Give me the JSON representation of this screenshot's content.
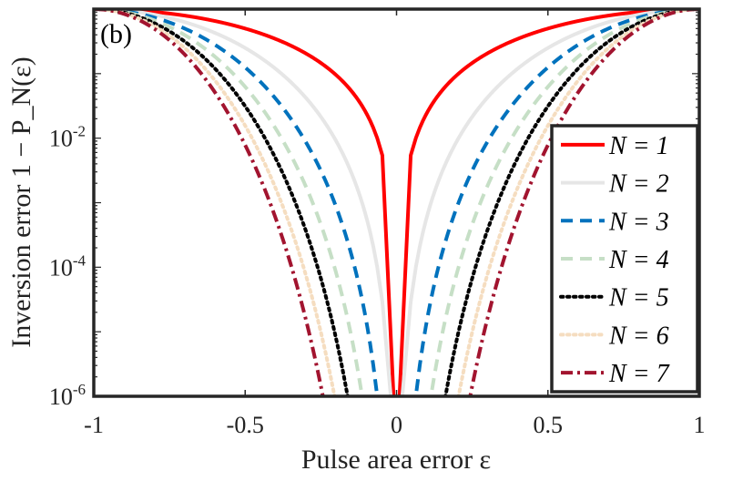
{
  "chart_data": {
    "type": "line",
    "panel_label": "(b)",
    "xlabel": "Pulse area error ε",
    "ylabel": "Inversion error 1 − P_N(ε)",
    "xlim": [
      -1,
      1
    ],
    "ylim": [
      1e-06,
      1
    ],
    "y_scale": "log",
    "x_ticks": [
      {
        "value": -1,
        "label": "-1"
      },
      {
        "value": -0.5,
        "label": "-0.5"
      },
      {
        "value": 0,
        "label": "0"
      },
      {
        "value": 0.5,
        "label": "0.5"
      },
      {
        "value": 1,
        "label": "1"
      }
    ],
    "y_ticks": [
      {
        "value": 1e-06,
        "base": "10",
        "exp": "-6"
      },
      {
        "value": 0.0001,
        "base": "10",
        "exp": "-4"
      },
      {
        "value": 0.01,
        "base": "10",
        "exp": "-2"
      }
    ],
    "grid": false,
    "legend_position": "right",
    "series": [
      {
        "name": "N = 1",
        "color": "#ff0000",
        "dash": "solid",
        "N": 1
      },
      {
        "name": "N = 2",
        "color": "#e6e6e6",
        "dash": "solid",
        "N": 2
      },
      {
        "name": "N = 3",
        "color": "#0072bd",
        "dash": "dashed",
        "N": 3
      },
      {
        "name": "N = 4",
        "color": "#c6dfc6",
        "dash": "dashed",
        "N": 4
      },
      {
        "name": "N = 5",
        "color": "#000000",
        "dash": "dotted",
        "N": 5
      },
      {
        "name": "N = 6",
        "color": "#f5ddc0",
        "dash": "dotted",
        "N": 6
      },
      {
        "name": "N = 7",
        "color": "#a2142f",
        "dash": "dashdot",
        "N": 7
      }
    ]
  }
}
